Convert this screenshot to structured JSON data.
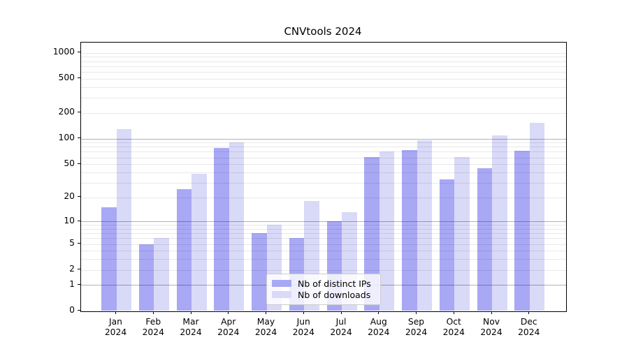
{
  "chart_data": {
    "type": "bar",
    "title": "CNVtools 2024",
    "xlabel": "",
    "ylabel": "",
    "year_label": "2024",
    "categories": [
      "Jan",
      "Feb",
      "Mar",
      "Apr",
      "May",
      "Jun",
      "Jul",
      "Aug",
      "Sep",
      "Oct",
      "Nov",
      "Dec"
    ],
    "series": [
      {
        "name": "Nb of distinct IPs",
        "color": "#a8a8f5",
        "values": [
          15,
          5,
          25,
          77,
          7,
          6,
          10,
          61,
          73,
          33,
          45,
          72
        ]
      },
      {
        "name": "Nb of downloads",
        "color": "#d9d9f8",
        "values": [
          128,
          6,
          38,
          90,
          9,
          18,
          13,
          70,
          95,
          61,
          110,
          152
        ]
      }
    ],
    "y_ticks": [
      0,
      1,
      2,
      5,
      10,
      20,
      50,
      100,
      200,
      500,
      1000
    ],
    "y_major_gridlines": [
      1,
      10,
      100
    ],
    "y_scale": "log1p",
    "ylim": [
      0,
      1000
    ],
    "grid": true,
    "legend_position": "lower-center"
  }
}
